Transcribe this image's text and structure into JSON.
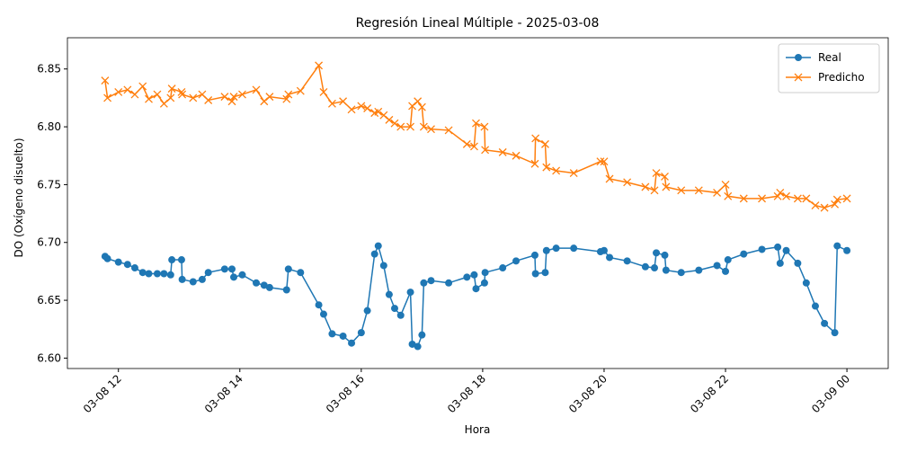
{
  "chart_data": {
    "type": "line",
    "title": "Regresión Lineal Múltiple - 2025-03-08",
    "xlabel": "Hora",
    "ylabel": "DO (Oxígeno disuelto)",
    "x": [
      11.78,
      11.82,
      12.0,
      12.15,
      12.27,
      12.4,
      12.5,
      12.64,
      12.75,
      12.86,
      12.88,
      13.04,
      13.05,
      13.23,
      13.38,
      13.48,
      13.75,
      13.87,
      13.9,
      14.04,
      14.27,
      14.4,
      14.49,
      14.77,
      14.8,
      15.0,
      15.3,
      15.38,
      15.52,
      15.7,
      15.84,
      16.0,
      16.1,
      16.22,
      16.28,
      16.37,
      16.46,
      16.55,
      16.65,
      16.81,
      16.84,
      16.93,
      17.0,
      17.03,
      17.15,
      17.44,
      17.74,
      17.86,
      17.89,
      18.03,
      18.04,
      18.33,
      18.55,
      18.86,
      18.87,
      19.03,
      19.05,
      19.21,
      19.5,
      19.94,
      20.0,
      20.09,
      20.38,
      20.68,
      20.83,
      20.86,
      21.0,
      21.02,
      21.27,
      21.56,
      21.86,
      22.0,
      22.04,
      22.3,
      22.6,
      22.86,
      22.9,
      23.0,
      23.19,
      23.33,
      23.48,
      23.63,
      23.8,
      23.84,
      24.0
    ],
    "series": [
      {
        "name": "Real",
        "color": "#1f77b4",
        "marker": "o",
        "values": [
          6.688,
          6.686,
          6.683,
          6.681,
          6.678,
          6.674,
          6.673,
          6.673,
          6.673,
          6.672,
          6.685,
          6.685,
          6.668,
          6.666,
          6.668,
          6.674,
          6.677,
          6.677,
          6.67,
          6.672,
          6.665,
          6.663,
          6.661,
          6.659,
          6.677,
          6.674,
          6.646,
          6.638,
          6.621,
          6.619,
          6.613,
          6.622,
          6.641,
          6.69,
          6.697,
          6.68,
          6.655,
          6.643,
          6.637,
          6.657,
          6.612,
          6.61,
          6.62,
          6.665,
          6.667,
          6.665,
          6.67,
          6.672,
          6.66,
          6.665,
          6.674,
          6.678,
          6.684,
          6.689,
          6.673,
          6.674,
          6.693,
          6.695,
          6.695,
          6.692,
          6.693,
          6.687,
          6.684,
          6.679,
          6.678,
          6.691,
          6.689,
          6.676,
          6.674,
          6.676,
          6.68,
          6.675,
          6.685,
          6.69,
          6.694,
          6.696,
          6.682,
          6.693,
          6.682,
          6.665,
          6.645,
          6.63,
          6.622,
          6.697,
          6.693
        ]
      },
      {
        "name": "Predicho",
        "color": "#ff7f0e",
        "marker": "x",
        "values": [
          6.84,
          6.825,
          6.83,
          6.832,
          6.828,
          6.835,
          6.824,
          6.828,
          6.82,
          6.825,
          6.833,
          6.83,
          6.828,
          6.825,
          6.828,
          6.823,
          6.826,
          6.822,
          6.826,
          6.828,
          6.832,
          6.822,
          6.826,
          6.824,
          6.828,
          6.831,
          6.853,
          6.83,
          6.82,
          6.822,
          6.815,
          6.818,
          6.816,
          6.812,
          6.813,
          6.81,
          6.806,
          6.803,
          6.8,
          6.8,
          6.818,
          6.822,
          6.817,
          6.8,
          6.798,
          6.797,
          6.785,
          6.783,
          6.803,
          6.8,
          6.78,
          6.778,
          6.775,
          6.768,
          6.79,
          6.785,
          6.765,
          6.762,
          6.76,
          6.77,
          6.77,
          6.755,
          6.752,
          6.748,
          6.745,
          6.76,
          6.757,
          6.748,
          6.745,
          6.745,
          6.743,
          6.75,
          6.74,
          6.738,
          6.738,
          6.74,
          6.743,
          6.74,
          6.738,
          6.738,
          6.732,
          6.73,
          6.733,
          6.737,
          6.738
        ]
      }
    ],
    "xlim": [
      11.16,
      24.68
    ],
    "xticks": [
      {
        "value": 12,
        "label": "03-08 12"
      },
      {
        "value": 14,
        "label": "03-08 14"
      },
      {
        "value": 16,
        "label": "03-08 16"
      },
      {
        "value": 18,
        "label": "03-08 18"
      },
      {
        "value": 20,
        "label": "03-08 20"
      },
      {
        "value": 22,
        "label": "03-08 22"
      },
      {
        "value": 24,
        "label": "03-09 00"
      }
    ],
    "ylim": [
      6.591,
      6.877
    ],
    "yticks": [
      {
        "value": 6.6,
        "label": "6.60"
      },
      6.65,
      {
        "value": 6.7,
        "label": "6.70"
      },
      6.75,
      {
        "value": 6.8,
        "label": "6.80"
      },
      6.85
    ],
    "legend": "upper right",
    "grid": false
  }
}
